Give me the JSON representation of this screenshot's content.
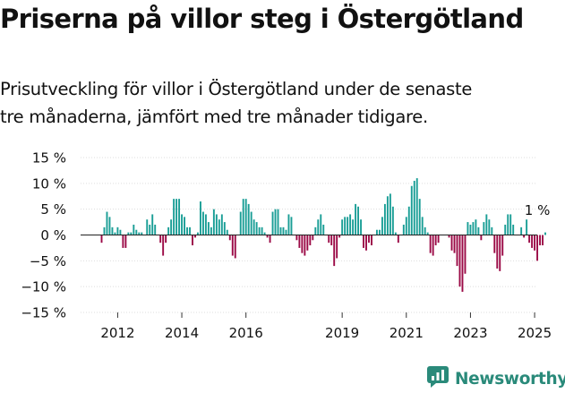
{
  "header": {
    "title": "Priserna på villor steg i Östergötland",
    "subtitle_line1": "Prisutveckling för villor i Östergötland under de senaste",
    "subtitle_line2": "tre månaderna, jämfört med tre månader tidigare."
  },
  "brand": {
    "name": "Newsworthy",
    "icon": "newsworthy-chart-icon"
  },
  "colors": {
    "positive": "#1a9e96",
    "negative": "#9b0a46",
    "text": "#111111",
    "axis": "#333333"
  },
  "chart_data": {
    "type": "bar",
    "title": "",
    "xlabel": "",
    "ylabel": "",
    "ylim": [
      -15,
      15
    ],
    "yticks": [
      15,
      10,
      5,
      0,
      -5,
      -10,
      -15
    ],
    "ytick_labels": [
      "15 %",
      "10 %",
      "5 %",
      "0 %",
      "−5 %",
      "−10 %",
      "−15 %"
    ],
    "x_tick_labels": [
      "2012",
      "2014",
      "2016",
      "2019",
      "2021",
      "2023",
      "2025"
    ],
    "x_tick_index": [
      6,
      30,
      54,
      90,
      114,
      138,
      162
    ],
    "annotation": {
      "text": "1 %",
      "index": 163
    },
    "values": [
      -1.5,
      1.5,
      4.5,
      3.5,
      1.5,
      0.5,
      1.5,
      1.0,
      -2.5,
      -2.5,
      0.5,
      0.5,
      2.0,
      1.0,
      0.5,
      0.5,
      0.0,
      3.0,
      2.0,
      4.0,
      2.0,
      0.0,
      -1.5,
      -4.0,
      -1.5,
      1.5,
      3.0,
      7.0,
      7.0,
      7.0,
      4.0,
      3.5,
      1.5,
      1.5,
      -2.0,
      -0.5,
      0.5,
      6.5,
      4.5,
      4.0,
      2.5,
      1.5,
      5.0,
      4.0,
      3.0,
      4.0,
      2.5,
      1.0,
      -1.0,
      -4.0,
      -4.5,
      0.0,
      4.5,
      7.0,
      7.0,
      6.0,
      4.5,
      3.0,
      2.5,
      1.5,
      1.5,
      0.5,
      -0.5,
      -1.5,
      4.5,
      5.0,
      5.0,
      1.5,
      1.5,
      1.0,
      4.0,
      3.5,
      0.0,
      -1.0,
      -2.5,
      -3.5,
      -4.0,
      -3.0,
      -2.0,
      -1.0,
      1.5,
      3.0,
      4.0,
      2.0,
      0.0,
      -1.5,
      -2.0,
      -6.0,
      -4.5,
      -0.5,
      3.0,
      3.5,
      3.5,
      4.0,
      3.0,
      6.0,
      5.5,
      3.0,
      -2.5,
      -3.0,
      -1.5,
      -2.0,
      0.0,
      1.0,
      1.0,
      3.5,
      6.0,
      7.5,
      8.0,
      5.5,
      0.5,
      -1.5,
      0.0,
      2.0,
      3.5,
      5.5,
      9.5,
      10.5,
      11.0,
      7.0,
      3.5,
      1.5,
      0.5,
      -3.5,
      -4.0,
      -2.0,
      -1.5,
      0.0,
      0.0,
      0.0,
      -0.5,
      -3.0,
      -3.5,
      -6.0,
      -10.0,
      -11.0,
      -7.5,
      2.5,
      2.0,
      2.5,
      3.0,
      1.5,
      -1.0,
      2.5,
      4.0,
      3.0,
      1.5,
      -3.5,
      -6.5,
      -7.0,
      -4.0,
      2.0,
      4.0,
      4.0,
      2.0,
      0.0,
      0.0,
      1.5,
      -0.5,
      3.0,
      -1.5,
      -2.5,
      -3.0,
      -5.0,
      -2.0,
      -2.0,
      0.5
    ]
  }
}
